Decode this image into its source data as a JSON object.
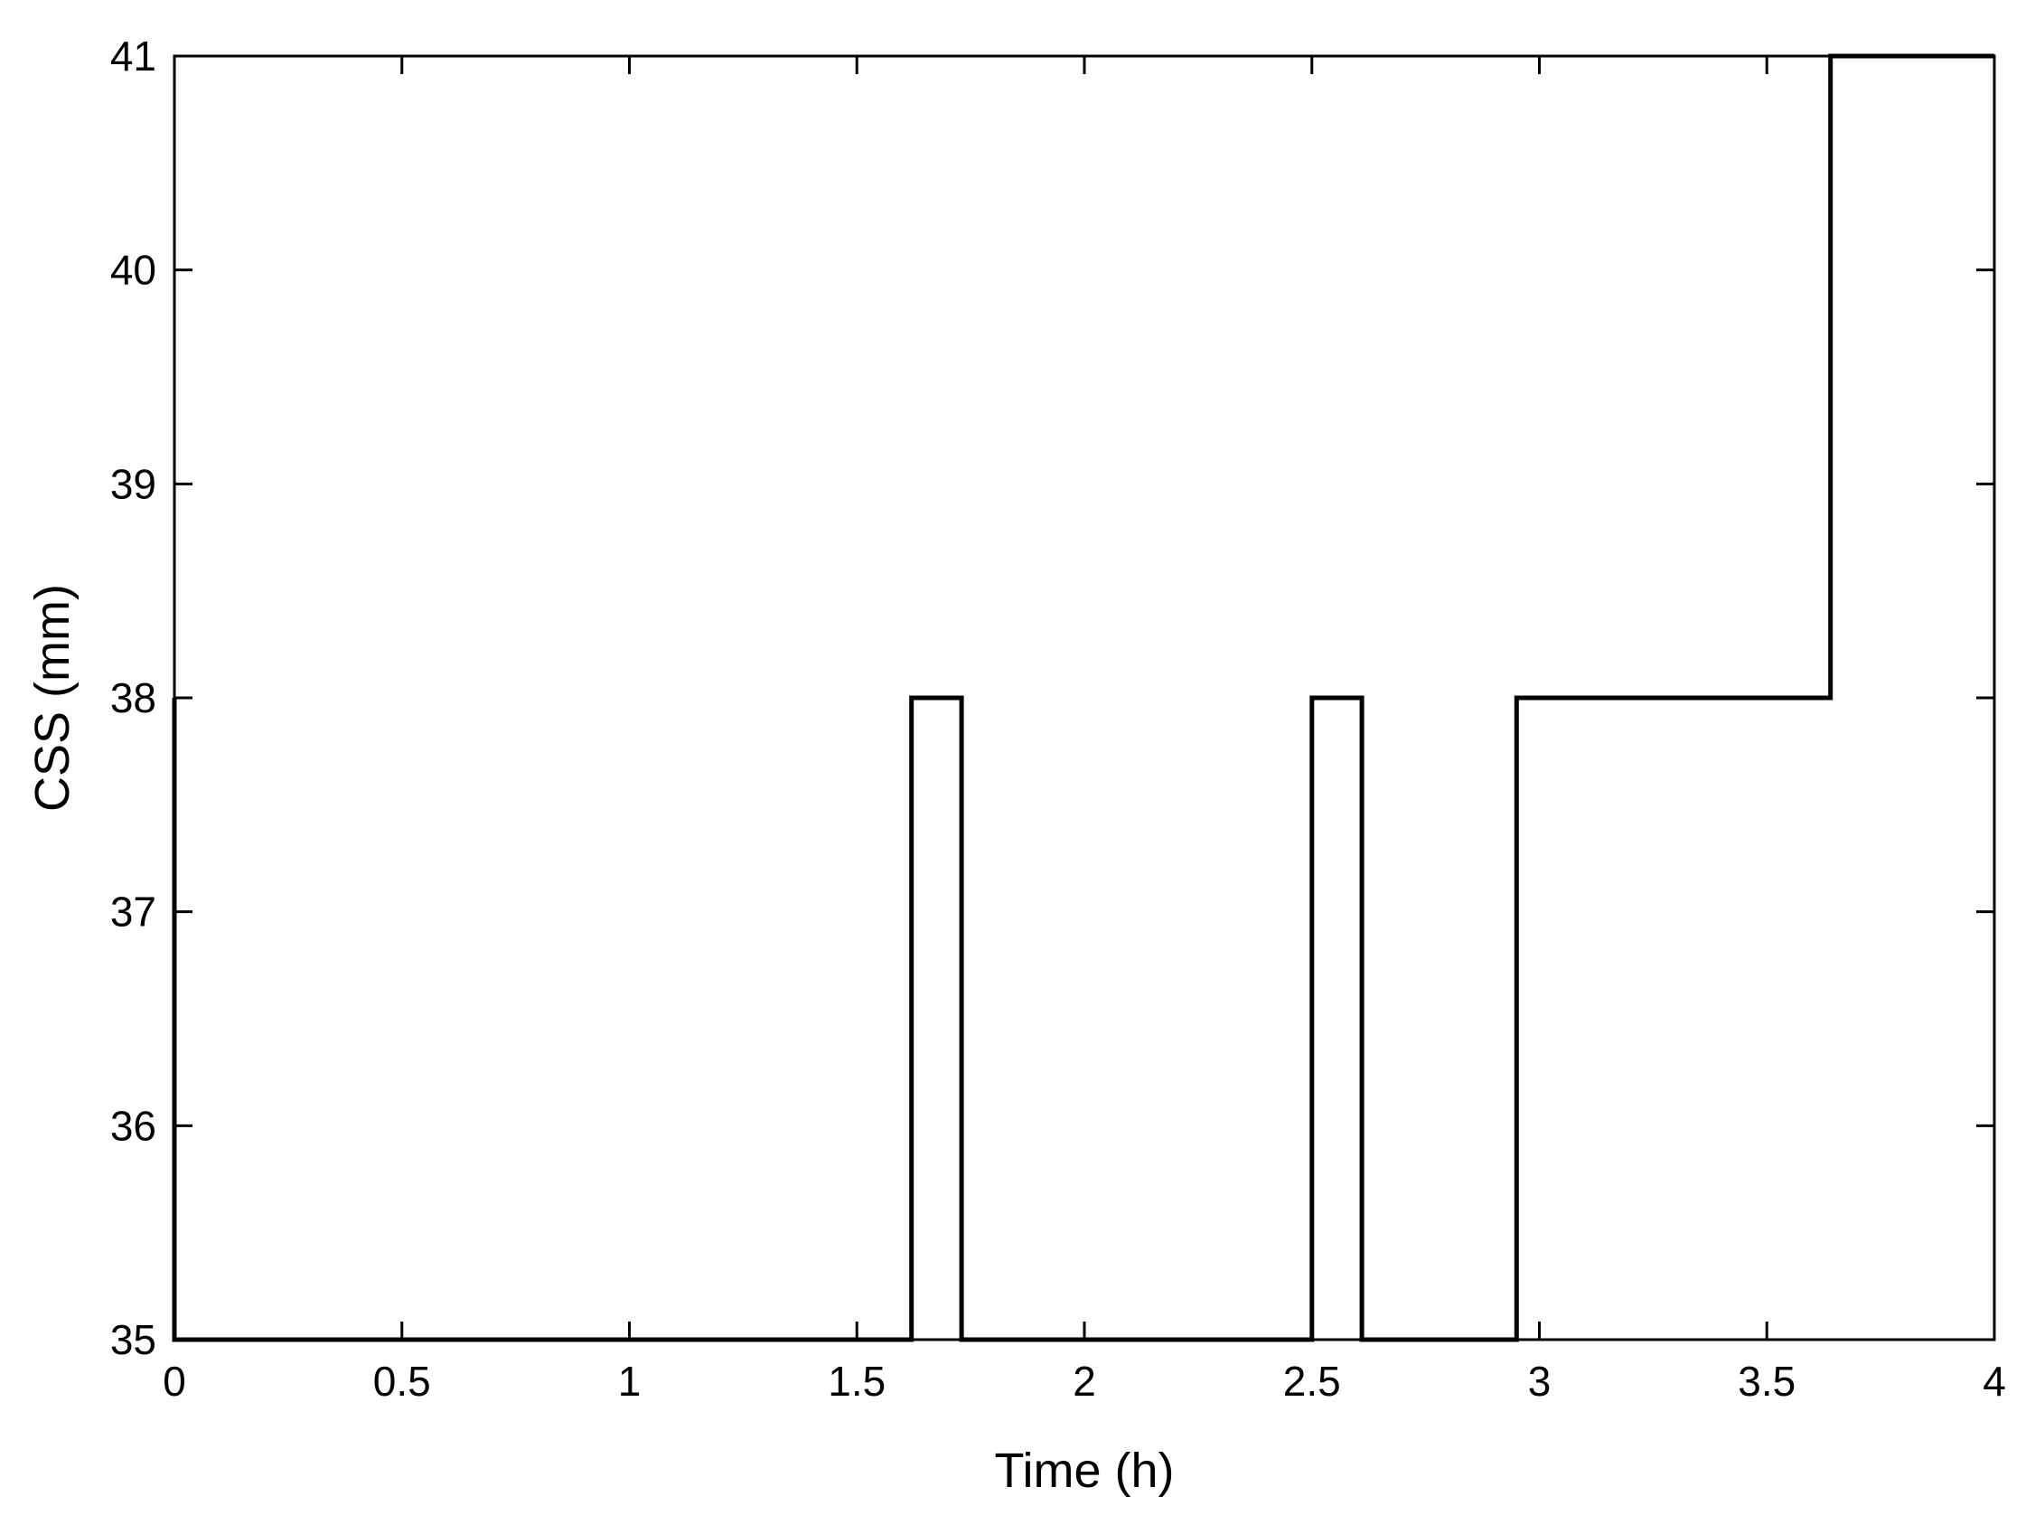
{
  "chart_data": {
    "type": "line",
    "title": "",
    "xlabel": "Time (h)",
    "ylabel": "CSS (mm)",
    "xlim": [
      0,
      4
    ],
    "ylim": [
      35,
      41
    ],
    "x_ticks": [
      0,
      0.5,
      1,
      1.5,
      2,
      2.5,
      3,
      3.5,
      4
    ],
    "x_tick_labels": [
      "0",
      "0.5",
      "1",
      "1.5",
      "2",
      "2.5",
      "3",
      "3.5",
      "4"
    ],
    "y_ticks": [
      35,
      36,
      37,
      38,
      39,
      40,
      41
    ],
    "y_tick_labels": [
      "35",
      "36",
      "37",
      "38",
      "39",
      "40",
      "41"
    ],
    "grid": false,
    "legend": "none",
    "line_color": "#000000",
    "series": [
      {
        "step": true,
        "x": [
          0,
          0,
          1.62,
          1.62,
          1.73,
          1.73,
          2.5,
          2.5,
          2.61,
          2.61,
          2.95,
          2.95,
          3.64,
          3.64,
          4
        ],
        "y": [
          38,
          35,
          35,
          38,
          38,
          35,
          35,
          38,
          38,
          35,
          35,
          38,
          38,
          41,
          41
        ]
      }
    ]
  }
}
